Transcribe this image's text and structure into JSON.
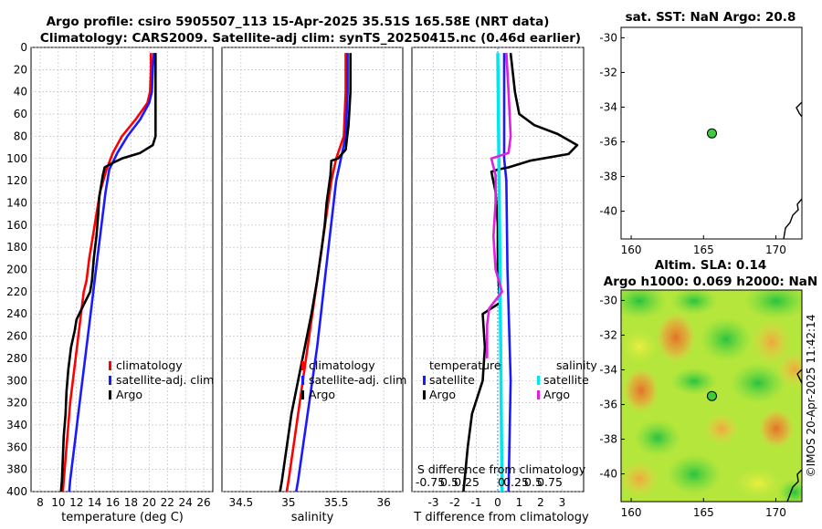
{
  "figure": {
    "title_line1": "Argo profile: csiro 5905507_113 15-Apr-2025 35.51S 165.58E (NRT data)",
    "title_line2": "Climatology: CARS2009. Satellite-adj clim: synTS_20250415.nc (0.46d earlier)",
    "credit": "©IMOS 20-Apr-2025 11:42:14"
  },
  "colors": {
    "climatology": "#ff0000",
    "satellite": "#1a1aff",
    "argo": "#000000",
    "sat_salinity": "#00e5ee",
    "argo_salinity": "#e020e0",
    "float_marker": "#3ccc3c"
  },
  "chart_data": [
    {
      "type": "line",
      "id": "temperature",
      "xlabel": "temperature (deg C)",
      "xlim": [
        7,
        27
      ],
      "xticks": [
        8,
        10,
        12,
        14,
        16,
        18,
        20,
        22,
        24,
        26
      ],
      "ylim": [
        0,
        400
      ],
      "yticks": [
        0,
        20,
        40,
        60,
        80,
        100,
        120,
        140,
        160,
        180,
        200,
        220,
        240,
        260,
        280,
        300,
        320,
        340,
        360,
        380,
        400
      ],
      "legend": [
        "climatology",
        "satellite-adj. clim",
        "Argo"
      ],
      "series": [
        {
          "name": "climatology",
          "color": "#ff0000",
          "points": [
            [
              20.2,
              5
            ],
            [
              20.2,
              20
            ],
            [
              20.1,
              40
            ],
            [
              19.8,
              50
            ],
            [
              18.5,
              65
            ],
            [
              17.0,
              80
            ],
            [
              16.0,
              95
            ],
            [
              15.3,
              110
            ],
            [
              14.6,
              130
            ],
            [
              14.2,
              150
            ],
            [
              13.8,
              170
            ],
            [
              13.4,
              190
            ],
            [
              13.1,
              210
            ],
            [
              12.8,
              220
            ],
            [
              12.5,
              240
            ],
            [
              12.2,
              260
            ],
            [
              11.9,
              280
            ],
            [
              11.6,
              300
            ],
            [
              11.3,
              320
            ],
            [
              11.1,
              340
            ],
            [
              10.9,
              360
            ],
            [
              10.7,
              380
            ],
            [
              10.5,
              400
            ]
          ]
        },
        {
          "name": "satellite-adj. clim",
          "color": "#1a1aff",
          "points": [
            [
              20.5,
              5
            ],
            [
              20.4,
              20
            ],
            [
              20.3,
              40
            ],
            [
              20.0,
              50
            ],
            [
              19.0,
              65
            ],
            [
              17.6,
              80
            ],
            [
              16.5,
              95
            ],
            [
              15.6,
              110
            ],
            [
              15.2,
              130
            ],
            [
              14.9,
              150
            ],
            [
              14.6,
              170
            ],
            [
              14.3,
              190
            ],
            [
              14.0,
              210
            ],
            [
              13.7,
              230
            ],
            [
              13.4,
              250
            ],
            [
              13.1,
              270
            ],
            [
              12.8,
              290
            ],
            [
              12.5,
              310
            ],
            [
              12.2,
              330
            ],
            [
              11.9,
              350
            ],
            [
              11.6,
              370
            ],
            [
              11.3,
              390
            ],
            [
              11.2,
              400
            ]
          ]
        },
        {
          "name": "Argo",
          "color": "#000000",
          "points": [
            [
              20.7,
              5
            ],
            [
              20.7,
              40
            ],
            [
              20.7,
              80
            ],
            [
              20.4,
              88
            ],
            [
              19.0,
              95
            ],
            [
              17.0,
              100
            ],
            [
              16.0,
              104
            ],
            [
              15.1,
              108
            ],
            [
              14.9,
              115
            ],
            [
              14.7,
              125
            ],
            [
              14.5,
              135
            ],
            [
              14.4,
              150
            ],
            [
              14.2,
              170
            ],
            [
              13.9,
              190
            ],
            [
              13.7,
              210
            ],
            [
              13.5,
              220
            ],
            [
              12.6,
              235
            ],
            [
              12.0,
              245
            ],
            [
              11.8,
              255
            ],
            [
              11.4,
              270
            ],
            [
              11.1,
              290
            ],
            [
              10.9,
              310
            ],
            [
              10.8,
              330
            ],
            [
              10.6,
              350
            ],
            [
              10.5,
              370
            ],
            [
              10.4,
              390
            ],
            [
              10.3,
              400
            ]
          ]
        }
      ]
    },
    {
      "type": "line",
      "id": "salinity",
      "xlabel": "salinity",
      "xlim": [
        34.3,
        36.2
      ],
      "xticks": [
        34.5,
        35,
        35.5,
        36
      ],
      "ylim": [
        0,
        400
      ],
      "legend": [
        "climatology",
        "satellite-adj. clim",
        "Argo"
      ],
      "series": [
        {
          "name": "climatology",
          "color": "#ff0000",
          "points": [
            [
              35.6,
              5
            ],
            [
              35.6,
              40
            ],
            [
              35.58,
              80
            ],
            [
              35.5,
              100
            ],
            [
              35.45,
              120
            ],
            [
              35.4,
              150
            ],
            [
              35.35,
              180
            ],
            [
              35.3,
              210
            ],
            [
              35.25,
              240
            ],
            [
              35.2,
              270
            ],
            [
              35.15,
              300
            ],
            [
              35.1,
              330
            ],
            [
              35.05,
              360
            ],
            [
              35.0,
              390
            ],
            [
              34.98,
              400
            ]
          ]
        },
        {
          "name": "satellite-adj. clim",
          "color": "#1a1aff",
          "points": [
            [
              35.62,
              5
            ],
            [
              35.62,
              40
            ],
            [
              35.6,
              80
            ],
            [
              35.55,
              100
            ],
            [
              35.5,
              120
            ],
            [
              35.46,
              150
            ],
            [
              35.42,
              180
            ],
            [
              35.38,
              210
            ],
            [
              35.34,
              240
            ],
            [
              35.3,
              270
            ],
            [
              35.25,
              300
            ],
            [
              35.2,
              330
            ],
            [
              35.15,
              360
            ],
            [
              35.1,
              390
            ],
            [
              35.08,
              400
            ]
          ]
        },
        {
          "name": "Argo",
          "color": "#000000",
          "points": [
            [
              35.65,
              5
            ],
            [
              35.65,
              40
            ],
            [
              35.63,
              70
            ],
            [
              35.6,
              92
            ],
            [
              35.52,
              100
            ],
            [
              35.45,
              102
            ],
            [
              35.44,
              115
            ],
            [
              35.4,
              140
            ],
            [
              35.38,
              160
            ],
            [
              35.35,
              180
            ],
            [
              35.3,
              210
            ],
            [
              35.24,
              240
            ],
            [
              35.17,
              270
            ],
            [
              35.1,
              300
            ],
            [
              35.03,
              330
            ],
            [
              34.98,
              360
            ],
            [
              34.93,
              390
            ],
            [
              34.91,
              400
            ]
          ]
        }
      ]
    },
    {
      "type": "line",
      "id": "difference",
      "xlabel": "T difference from climatology",
      "top_label": "S difference from climatology",
      "top_ticks": [
        "-0.75",
        "0.5",
        "0.25",
        "0",
        "0.25",
        "0.5",
        "0.75"
      ],
      "xlim": [
        -4,
        4
      ],
      "xticks": [
        -3,
        -2,
        -1,
        0,
        1,
        2,
        3
      ],
      "ylim": [
        0,
        400
      ],
      "legend_left_title": "temperature",
      "legend_right_title": "salinity",
      "legend": [
        "satellite",
        "Argo",
        "satellite",
        "Argo"
      ],
      "series": [
        {
          "name": "T satellite",
          "color": "#1a1aff",
          "points": [
            [
              0.3,
              5
            ],
            [
              0.3,
              100
            ],
            [
              0.4,
              120
            ],
            [
              0.45,
              200
            ],
            [
              0.6,
              300
            ],
            [
              0.5,
              400
            ]
          ]
        },
        {
          "name": "T Argo",
          "color": "#000000",
          "points": [
            [
              0.6,
              5
            ],
            [
              0.8,
              40
            ],
            [
              1.0,
              60
            ],
            [
              1.7,
              70
            ],
            [
              2.8,
              78
            ],
            [
              3.7,
              88
            ],
            [
              3.3,
              96
            ],
            [
              1.5,
              102
            ],
            [
              0.5,
              108
            ],
            [
              0.0,
              110
            ],
            [
              -0.3,
              112
            ],
            [
              -0.1,
              130
            ],
            [
              0.0,
              160
            ],
            [
              0.0,
              200
            ],
            [
              0.1,
              230
            ],
            [
              -0.7,
              240
            ],
            [
              -0.6,
              270
            ],
            [
              -0.7,
              300
            ],
            [
              -1.2,
              330
            ],
            [
              -1.4,
              360
            ],
            [
              -1.5,
              380
            ],
            [
              -1.6,
              400
            ]
          ]
        },
        {
          "name": "S satellite",
          "color": "#00e5ee",
          "points": [
            [
              0.0,
              5
            ],
            [
              0.05,
              100
            ],
            [
              0.1,
              200
            ],
            [
              0.15,
              300
            ],
            [
              0.2,
              400
            ]
          ]
        },
        {
          "name": "S Argo",
          "color": "#e020e0",
          "points": [
            [
              0.4,
              5
            ],
            [
              0.5,
              40
            ],
            [
              0.6,
              80
            ],
            [
              0.5,
              95
            ],
            [
              -0.3,
              100
            ],
            [
              -0.1,
              115
            ],
            [
              -0.1,
              140
            ],
            [
              -0.2,
              170
            ],
            [
              -0.1,
              200
            ],
            [
              0.2,
              220
            ],
            [
              -0.4,
              235
            ],
            [
              -0.5,
              250
            ],
            [
              -0.5,
              280
            ]
          ]
        }
      ]
    },
    {
      "type": "scatter",
      "id": "sst_map",
      "title": "sat. SST: NaN Argo: 20.8",
      "xlim": [
        159.3,
        171.8
      ],
      "ylim": [
        -41.6,
        -29.4
      ],
      "xticks": [
        160,
        165,
        170
      ],
      "yticks": [
        -30,
        -32,
        -34,
        -36,
        -38,
        -40
      ],
      "points": [
        [
          165.58,
          -35.51
        ]
      ]
    },
    {
      "type": "heatmap",
      "id": "sla_map",
      "title_line1": "Altim. SLA: 0.14",
      "title_line2": "Argo h1000: 0.069 h2000: NaN",
      "xlim": [
        159.3,
        171.8
      ],
      "ylim": [
        -41.6,
        -29.4
      ],
      "xticks": [
        160,
        165,
        170
      ],
      "yticks": [
        -30,
        -32,
        -34,
        -36,
        -38,
        -40
      ],
      "points": [
        [
          165.58,
          -35.51
        ]
      ]
    }
  ]
}
